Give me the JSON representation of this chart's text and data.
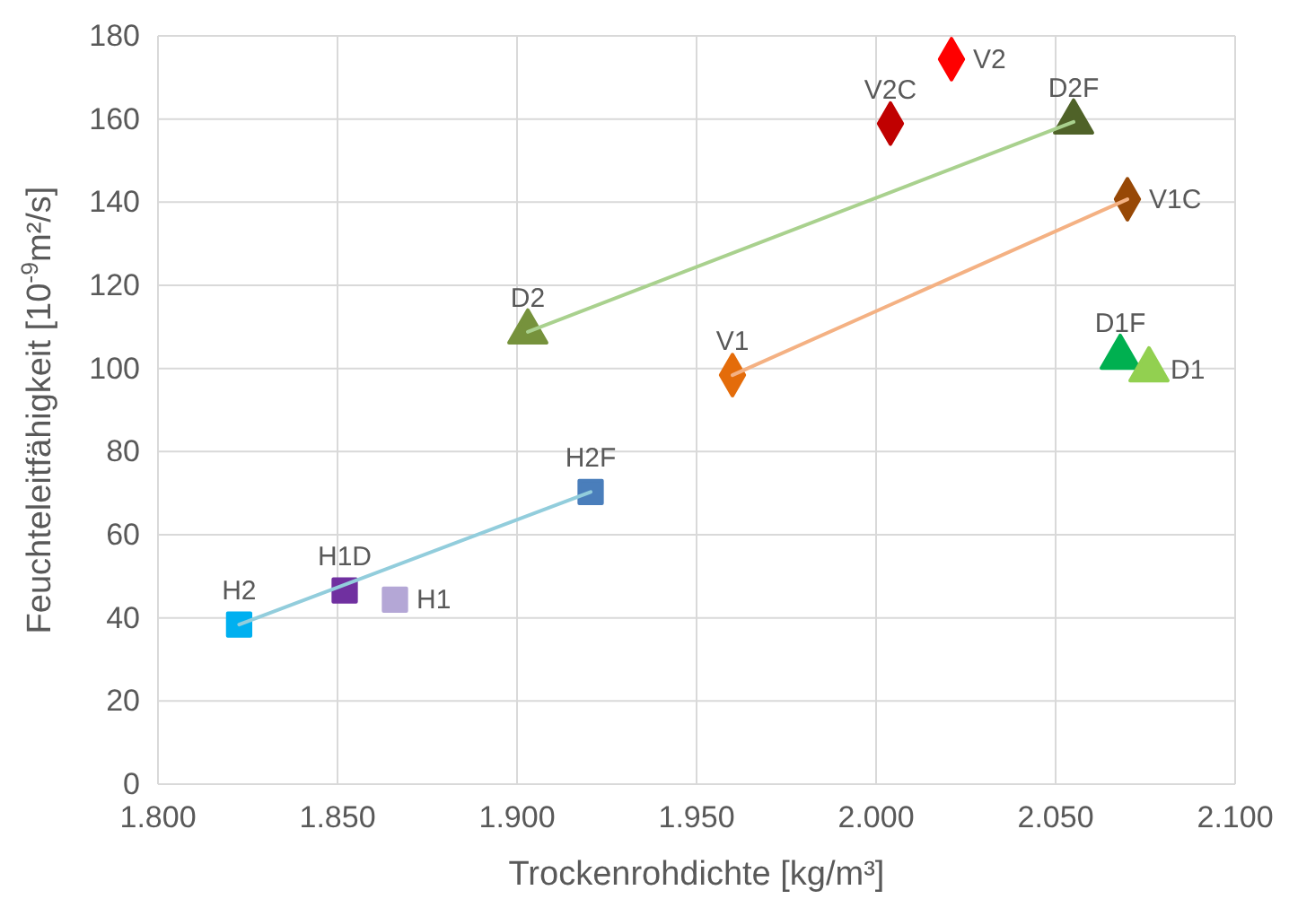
{
  "chart_data": {
    "type": "scatter",
    "xlabel": "Trockenrohdichte [kg/m³]",
    "ylabel": "Feuchteleitfähigkeit [10$^{-9}$m²/s]",
    "xlim": [
      1.8,
      2.1
    ],
    "xticks": [
      {
        "value": 1.8,
        "label": "1.800"
      },
      {
        "value": 1.85,
        "label": "1.850"
      },
      {
        "value": 1.9,
        "label": "1.900"
      },
      {
        "value": 1.95,
        "label": "1.950"
      },
      {
        "value": 2.0,
        "label": "2.000"
      },
      {
        "value": 2.05,
        "label": "2.050"
      },
      {
        "value": 2.1,
        "label": "2.100"
      }
    ],
    "ylim": [
      0,
      180
    ],
    "yticks": [
      0,
      20,
      40,
      60,
      80,
      100,
      120,
      140,
      160,
      180
    ],
    "grid": true,
    "series": [
      {
        "type": "line",
        "color": "#92cddc",
        "x": [
          1.8226,
          1.9205
        ],
        "values": [
          38.4,
          70.3
        ]
      },
      {
        "type": "line",
        "color": "#a9d18e",
        "x": [
          1.903,
          2.055
        ],
        "values": [
          108.8,
          159.3
        ]
      },
      {
        "type": "line",
        "color": "#f4b183",
        "x": [
          1.96,
          2.07
        ],
        "values": [
          98.4,
          140.7
        ]
      },
      {
        "name": "H2",
        "color": "#00b0f0",
        "x": [
          1.8226
        ],
        "values": [
          38.4
        ],
        "marker": "square"
      },
      {
        "name": "H1D",
        "color": "#7030a0",
        "x": [
          1.852
        ],
        "values": [
          46.6
        ],
        "marker": "square"
      },
      {
        "name": "H1",
        "color": "#b4a7d6",
        "x": [
          1.866
        ],
        "values": [
          44.4
        ],
        "marker": "square"
      },
      {
        "name": "H2F",
        "color": "#4a7ebb",
        "x": [
          1.9205
        ],
        "values": [
          70.3
        ],
        "marker": "square"
      },
      {
        "name": "D2",
        "color": "#76923c",
        "x": [
          1.903
        ],
        "values": [
          108.8
        ],
        "marker": "triangle"
      },
      {
        "name": "V1",
        "color": "#e46c0a",
        "x": [
          1.96
        ],
        "values": [
          98.4
        ],
        "marker": "diamond"
      },
      {
        "name": "V2C",
        "color": "#c00000",
        "x": [
          2.004
        ],
        "values": [
          158.9
        ],
        "marker": "diamond"
      },
      {
        "name": "V2",
        "color": "#ff0000",
        "x": [
          2.021
        ],
        "values": [
          174.4
        ],
        "marker": "diamond"
      },
      {
        "name": "D2F",
        "color": "#4f6228",
        "x": [
          2.055
        ],
        "values": [
          159.3
        ],
        "marker": "triangle"
      },
      {
        "name": "V1C",
        "color": "#974806",
        "x": [
          2.07
        ],
        "values": [
          140.7
        ],
        "marker": "diamond"
      },
      {
        "name": "D1F",
        "color": "#00b050",
        "x": [
          2.068
        ],
        "values": [
          102.7
        ],
        "marker": "triangle"
      },
      {
        "name": "D1",
        "color": "#92d050",
        "x": [
          2.076
        ],
        "values": [
          99.7
        ],
        "marker": "triangle"
      }
    ]
  }
}
